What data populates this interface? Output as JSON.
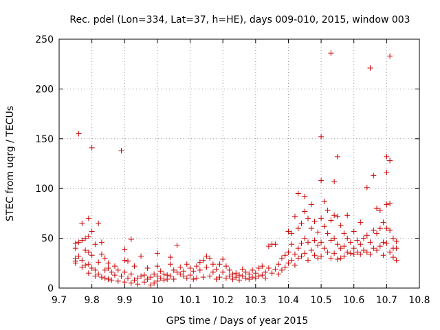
{
  "chart_data": {
    "type": "scatter",
    "title": "Rec. pdel (Lon=334, Lat=37, h=HE), days 009-010, 2015, window 003",
    "xlabel": "GPS time / Days of year 2015",
    "ylabel": "STEC from uqrg / TECUs",
    "xlim": [
      9.7,
      10.8
    ],
    "ylim": [
      0,
      250
    ],
    "xticks": [
      "9.7",
      "9.8",
      "9.9",
      "10",
      "10.1",
      "10.2",
      "10.3",
      "10.4",
      "10.5",
      "10.6",
      "10.7",
      "10.8"
    ],
    "yticks": [
      "0",
      "50",
      "100",
      "150",
      "200",
      "250"
    ],
    "grid": true,
    "marker": "+",
    "color": "#cc0000",
    "series": [
      {
        "name": "STEC",
        "points": [
          [
            9.75,
            45
          ],
          [
            9.75,
            40
          ],
          [
            9.75,
            30
          ],
          [
            9.75,
            27
          ],
          [
            9.75,
            25
          ],
          [
            9.76,
            46
          ],
          [
            9.76,
            155
          ],
          [
            9.76,
            32
          ],
          [
            9.77,
            48
          ],
          [
            9.77,
            65
          ],
          [
            9.77,
            28
          ],
          [
            9.77,
            21
          ],
          [
            9.78,
            50
          ],
          [
            9.78,
            38
          ],
          [
            9.78,
            23
          ],
          [
            9.79,
            70
          ],
          [
            9.79,
            52
          ],
          [
            9.79,
            36
          ],
          [
            9.79,
            24
          ],
          [
            9.79,
            15
          ],
          [
            9.8,
            141
          ],
          [
            9.8,
            57
          ],
          [
            9.8,
            33
          ],
          [
            9.8,
            20
          ],
          [
            9.81,
            44
          ],
          [
            9.81,
            18
          ],
          [
            9.81,
            12
          ],
          [
            9.82,
            65
          ],
          [
            9.82,
            26
          ],
          [
            9.82,
            14
          ],
          [
            9.83,
            46
          ],
          [
            9.83,
            34
          ],
          [
            9.83,
            11
          ],
          [
            9.84,
            30
          ],
          [
            9.84,
            18
          ],
          [
            9.84,
            10
          ],
          [
            9.85,
            25
          ],
          [
            9.85,
            20
          ],
          [
            9.85,
            9
          ],
          [
            9.86,
            16
          ],
          [
            9.86,
            8
          ],
          [
            9.87,
            22
          ],
          [
            9.87,
            13
          ],
          [
            9.88,
            18
          ],
          [
            9.88,
            7
          ],
          [
            9.89,
            138
          ],
          [
            9.89,
            12
          ],
          [
            9.9,
            39
          ],
          [
            9.9,
            28
          ],
          [
            9.9,
            16
          ],
          [
            9.9,
            6
          ],
          [
            9.91,
            27
          ],
          [
            9.91,
            10
          ],
          [
            9.92,
            49
          ],
          [
            9.92,
            14
          ],
          [
            9.92,
            5
          ],
          [
            9.93,
            22
          ],
          [
            9.93,
            8
          ],
          [
            9.94,
            10
          ],
          [
            9.94,
            4
          ],
          [
            9.95,
            32
          ],
          [
            9.95,
            12
          ],
          [
            9.96,
            13
          ],
          [
            9.96,
            6
          ],
          [
            9.97,
            20
          ],
          [
            9.97,
            9
          ],
          [
            9.98,
            11
          ],
          [
            9.98,
            3
          ],
          [
            9.99,
            14
          ],
          [
            9.99,
            5
          ],
          [
            10.0,
            35
          ],
          [
            10.0,
            22
          ],
          [
            10.0,
            12
          ],
          [
            10.0,
            7
          ],
          [
            10.01,
            17
          ],
          [
            10.01,
            10
          ],
          [
            10.02,
            14
          ],
          [
            10.02,
            8
          ],
          [
            10.03,
            13
          ],
          [
            10.03,
            9
          ],
          [
            10.04,
            31
          ],
          [
            10.04,
            24
          ],
          [
            10.04,
            12
          ],
          [
            10.05,
            18
          ],
          [
            10.05,
            9
          ],
          [
            10.06,
            43
          ],
          [
            10.06,
            16
          ],
          [
            10.07,
            21
          ],
          [
            10.07,
            14
          ],
          [
            10.08,
            17
          ],
          [
            10.08,
            12
          ],
          [
            10.09,
            24
          ],
          [
            10.09,
            10
          ],
          [
            10.1,
            20
          ],
          [
            10.1,
            13
          ],
          [
            10.11,
            17
          ],
          [
            10.11,
            9
          ],
          [
            10.12,
            22
          ],
          [
            10.12,
            10
          ],
          [
            10.13,
            26
          ],
          [
            10.13,
            18
          ],
          [
            10.14,
            28
          ],
          [
            10.14,
            11
          ],
          [
            10.15,
            32
          ],
          [
            10.15,
            21
          ],
          [
            10.16,
            30
          ],
          [
            10.16,
            12
          ],
          [
            10.17,
            24
          ],
          [
            10.17,
            16
          ],
          [
            10.18,
            19
          ],
          [
            10.18,
            9
          ],
          [
            10.19,
            24
          ],
          [
            10.19,
            11
          ],
          [
            10.2,
            29
          ],
          [
            10.2,
            16
          ],
          [
            10.21,
            22
          ],
          [
            10.21,
            10
          ],
          [
            10.22,
            18
          ],
          [
            10.22,
            12
          ],
          [
            10.23,
            14
          ],
          [
            10.23,
            9
          ],
          [
            10.24,
            15
          ],
          [
            10.24,
            11
          ],
          [
            10.25,
            13
          ],
          [
            10.25,
            8
          ],
          [
            10.26,
            19
          ],
          [
            10.26,
            12
          ],
          [
            10.27,
            16
          ],
          [
            10.27,
            10
          ],
          [
            10.28,
            14
          ],
          [
            10.28,
            9
          ],
          [
            10.29,
            18
          ],
          [
            10.29,
            11
          ],
          [
            10.3,
            15
          ],
          [
            10.3,
            10
          ],
          [
            10.31,
            20
          ],
          [
            10.31,
            12
          ],
          [
            10.32,
            22
          ],
          [
            10.32,
            13
          ],
          [
            10.33,
            16
          ],
          [
            10.33,
            10
          ],
          [
            10.34,
            42
          ],
          [
            10.34,
            20
          ],
          [
            10.35,
            44
          ],
          [
            10.35,
            15
          ],
          [
            10.36,
            44
          ],
          [
            10.36,
            19
          ],
          [
            10.37,
            24
          ],
          [
            10.37,
            14
          ],
          [
            10.38,
            30
          ],
          [
            10.38,
            18
          ],
          [
            10.39,
            33
          ],
          [
            10.39,
            21
          ],
          [
            10.4,
            57
          ],
          [
            10.4,
            36
          ],
          [
            10.4,
            25
          ],
          [
            10.41,
            55
          ],
          [
            10.41,
            44
          ],
          [
            10.41,
            28
          ],
          [
            10.42,
            72
          ],
          [
            10.42,
            34
          ],
          [
            10.42,
            23
          ],
          [
            10.43,
            95
          ],
          [
            10.43,
            60
          ],
          [
            10.43,
            40
          ],
          [
            10.43,
            30
          ],
          [
            10.44,
            65
          ],
          [
            10.44,
            45
          ],
          [
            10.44,
            32
          ],
          [
            10.45,
            92
          ],
          [
            10.45,
            77
          ],
          [
            10.45,
            50
          ],
          [
            10.45,
            35
          ],
          [
            10.46,
            70
          ],
          [
            10.46,
            46
          ],
          [
            10.46,
            28
          ],
          [
            10.47,
            84
          ],
          [
            10.47,
            60
          ],
          [
            10.47,
            38
          ],
          [
            10.48,
            67
          ],
          [
            10.48,
            48
          ],
          [
            10.48,
            33
          ],
          [
            10.49,
            56
          ],
          [
            10.49,
            43
          ],
          [
            10.49,
            30
          ],
          [
            10.5,
            152
          ],
          [
            10.5,
            108
          ],
          [
            10.5,
            70
          ],
          [
            10.5,
            46
          ],
          [
            10.5,
            32
          ],
          [
            10.51,
            87
          ],
          [
            10.51,
            62
          ],
          [
            10.51,
            40
          ],
          [
            10.52,
            78
          ],
          [
            10.52,
            55
          ],
          [
            10.52,
            36
          ],
          [
            10.53,
            236
          ],
          [
            10.53,
            68
          ],
          [
            10.53,
            48
          ],
          [
            10.53,
            30
          ],
          [
            10.54,
            107
          ],
          [
            10.54,
            73
          ],
          [
            10.54,
            50
          ],
          [
            10.54,
            35
          ],
          [
            10.55,
            132
          ],
          [
            10.55,
            72
          ],
          [
            10.55,
            44
          ],
          [
            10.55,
            29
          ],
          [
            10.56,
            63
          ],
          [
            10.56,
            40
          ],
          [
            10.56,
            30
          ],
          [
            10.57,
            55
          ],
          [
            10.57,
            42
          ],
          [
            10.57,
            32
          ],
          [
            10.58,
            73
          ],
          [
            10.58,
            50
          ],
          [
            10.58,
            36
          ],
          [
            10.59,
            46
          ],
          [
            10.59,
            35
          ],
          [
            10.6,
            57
          ],
          [
            10.6,
            40
          ],
          [
            10.6,
            34
          ],
          [
            10.61,
            48
          ],
          [
            10.61,
            36
          ],
          [
            10.62,
            66
          ],
          [
            10.62,
            44
          ],
          [
            10.62,
            34
          ],
          [
            10.63,
            50
          ],
          [
            10.63,
            38
          ],
          [
            10.64,
            101
          ],
          [
            10.64,
            53
          ],
          [
            10.64,
            36
          ],
          [
            10.65,
            46
          ],
          [
            10.65,
            34
          ],
          [
            10.65,
            221
          ],
          [
            10.66,
            113
          ],
          [
            10.66,
            58
          ],
          [
            10.66,
            40
          ],
          [
            10.67,
            80
          ],
          [
            10.67,
            55
          ],
          [
            10.67,
            38
          ],
          [
            10.68,
            78
          ],
          [
            10.68,
            60
          ],
          [
            10.68,
            42
          ],
          [
            10.69,
            66
          ],
          [
            10.69,
            46
          ],
          [
            10.69,
            33
          ],
          [
            10.7,
            132
          ],
          [
            10.7,
            116
          ],
          [
            10.7,
            84
          ],
          [
            10.7,
            60
          ],
          [
            10.7,
            45
          ],
          [
            10.71,
            233
          ],
          [
            10.71,
            128
          ],
          [
            10.71,
            85
          ],
          [
            10.71,
            58
          ],
          [
            10.71,
            36
          ],
          [
            10.72,
            50
          ],
          [
            10.72,
            40
          ],
          [
            10.72,
            31
          ],
          [
            10.73,
            47
          ],
          [
            10.73,
            40
          ],
          [
            10.73,
            28
          ]
        ]
      }
    ]
  }
}
